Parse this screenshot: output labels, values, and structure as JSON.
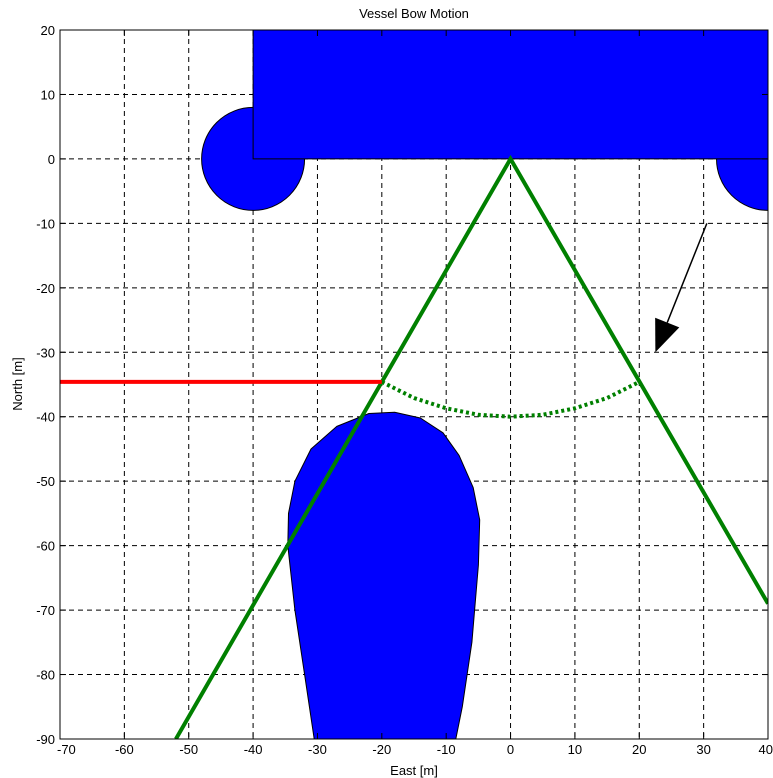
{
  "chart_data": {
    "type": "line",
    "title": "Vessel Bow Motion",
    "xlabel": "East [m]",
    "ylabel": "North [m]",
    "xlim": [
      -70,
      40
    ],
    "ylim": [
      -90,
      20
    ],
    "xticks": [
      -70,
      -60,
      -50,
      -40,
      -30,
      -20,
      -10,
      0,
      10,
      20,
      30,
      40
    ],
    "yticks": [
      20,
      10,
      0,
      -10,
      -20,
      -30,
      -40,
      -50,
      -60,
      -70,
      -80,
      -90
    ],
    "grid": true,
    "colors": {
      "structure": "#0000ff",
      "sector": "#008000",
      "limit": "#ff0000",
      "arrow": "#000000"
    },
    "shapes": {
      "quay": [
        [
          -40,
          20
        ],
        [
          40,
          20
        ],
        [
          40,
          0
        ],
        [
          -40,
          0
        ]
      ],
      "fender_left": {
        "center": [
          -40,
          0
        ],
        "radius": 8
      },
      "fender_right": {
        "center": [
          40,
          0
        ],
        "radius": 8
      },
      "vessel_bow": [
        [
          -30.5,
          -90
        ],
        [
          -32,
          -80
        ],
        [
          -33.5,
          -70
        ],
        [
          -34.6,
          -60
        ],
        [
          -34.5,
          -55
        ],
        [
          -33.5,
          -50
        ],
        [
          -31,
          -45
        ],
        [
          -27,
          -41.5
        ],
        [
          -22,
          -39.5
        ],
        [
          -18,
          -39.3
        ],
        [
          -14,
          -40.2
        ],
        [
          -10.5,
          -42.5
        ],
        [
          -8,
          -46
        ],
        [
          -5.8,
          -51
        ],
        [
          -4.8,
          -56
        ],
        [
          -5,
          -63
        ],
        [
          -6,
          -75
        ],
        [
          -7.5,
          -85
        ],
        [
          -8.5,
          -90
        ]
      ]
    },
    "series": [
      {
        "values": [
          [
            -52,
            -90
          ],
          [
            0,
            0
          ],
          [
            40,
            -69
          ]
        ]
      },
      {
        "values": [
          [
            -20,
            -34.6
          ],
          [
            -15,
            -37.1
          ],
          [
            -10,
            -38.7
          ],
          [
            -5,
            -39.7
          ],
          [
            0,
            -40
          ],
          [
            5,
            -39.7
          ],
          [
            10,
            -38.7
          ],
          [
            15,
            -37.1
          ],
          [
            20,
            -34.6
          ]
        ]
      },
      {
        "values": [
          [
            -70,
            -34.6
          ],
          [
            -20,
            -34.6
          ]
        ]
      }
    ],
    "annotations": [
      {
        "type": "arrow",
        "from": [
          30.5,
          -10
        ],
        "to": [
          22.5,
          -30
        ]
      }
    ]
  }
}
